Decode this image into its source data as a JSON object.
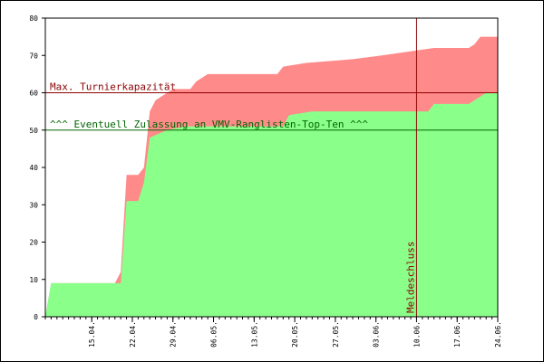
{
  "chart_data": {
    "type": "area",
    "title": "",
    "xlabel": "",
    "ylabel": "",
    "ylim": [
      0,
      80
    ],
    "yticks": [
      0,
      10,
      20,
      30,
      40,
      50,
      60,
      70,
      80
    ],
    "xlim": [
      "2016-04-07",
      "2016-06-24"
    ],
    "xticks": [
      "15.04.",
      "22.04.",
      "29.04.",
      "06.05.",
      "13.05.",
      "20.05.",
      "27.05.",
      "03.06.",
      "10.06.",
      "17.06.",
      "24.06."
    ],
    "grid": false,
    "legend": "none",
    "series": [
      {
        "color": "#ff8a8a",
        "points": [
          [
            "2016-04-07",
            0
          ],
          [
            "2016-04-08",
            9
          ],
          [
            "2016-04-13",
            9
          ],
          [
            "2016-04-19",
            9
          ],
          [
            "2016-04-20",
            12
          ],
          [
            "2016-04-21",
            38
          ],
          [
            "2016-04-23",
            38
          ],
          [
            "2016-04-24",
            40
          ],
          [
            "2016-04-25",
            55
          ],
          [
            "2016-04-26",
            58
          ],
          [
            "2016-04-29",
            61
          ],
          [
            "2016-05-02",
            61
          ],
          [
            "2016-05-03",
            63
          ],
          [
            "2016-05-04",
            64
          ],
          [
            "2016-05-05",
            65
          ],
          [
            "2016-05-17",
            65
          ],
          [
            "2016-05-18",
            67
          ],
          [
            "2016-05-22",
            68
          ],
          [
            "2016-05-30",
            69
          ],
          [
            "2016-06-04",
            70
          ],
          [
            "2016-06-13",
            72
          ],
          [
            "2016-06-19",
            72
          ],
          [
            "2016-06-20",
            73
          ],
          [
            "2016-06-21",
            75
          ],
          [
            "2016-06-24",
            75
          ]
        ]
      },
      {
        "color": "#8aff8a",
        "points": [
          [
            "2016-04-07",
            0
          ],
          [
            "2016-04-08",
            9
          ],
          [
            "2016-04-13",
            9
          ],
          [
            "2016-04-20",
            9
          ],
          [
            "2016-04-21",
            31
          ],
          [
            "2016-04-23",
            31
          ],
          [
            "2016-04-24",
            36
          ],
          [
            "2016-04-25",
            48
          ],
          [
            "2016-04-28",
            50
          ],
          [
            "2016-05-01",
            51
          ],
          [
            "2016-05-18",
            51
          ],
          [
            "2016-05-19",
            54
          ],
          [
            "2016-05-23",
            55
          ],
          [
            "2016-06-12",
            55
          ],
          [
            "2016-06-13",
            57
          ],
          [
            "2016-06-19",
            57
          ],
          [
            "2016-06-21",
            59
          ],
          [
            "2016-06-22",
            60
          ],
          [
            "2016-06-24",
            60
          ]
        ]
      }
    ],
    "hlines": [
      {
        "y": 60,
        "label": "Max. Turnierkapazität",
        "color": "#8b0000"
      },
      {
        "y": 50,
        "label": "^^^ Eventuell Zulassung an VMV-Ranglisten-Top-Ten ^^^",
        "color": "#006400"
      }
    ],
    "vlines": [
      {
        "x": "2016-06-10",
        "label": "Meldeschluss",
        "color": "#8b0000"
      }
    ]
  }
}
